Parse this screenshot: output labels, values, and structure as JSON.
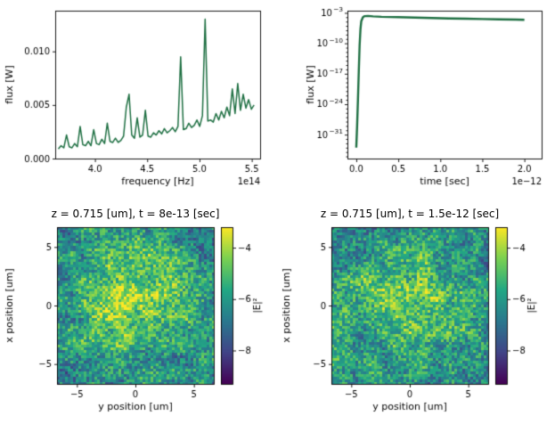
{
  "figure": {
    "background": "#ffffff"
  },
  "chart_data": [
    {
      "type": "line",
      "title": "",
      "xlabel": "frequency [Hz]",
      "x_offset_label": "1e14",
      "ylabel": "flux [W]",
      "xlim": [
        3.62,
        5.58
      ],
      "ylim": [
        0,
        0.0138
      ],
      "xticks": [
        4.0,
        4.5,
        5.0,
        5.5
      ],
      "xtick_labels": [
        "4.0",
        "4.5",
        "5.0",
        "5.5"
      ],
      "yticks": [
        0.0,
        0.005,
        0.01
      ],
      "ytick_labels": [
        "0.000",
        "0.005",
        "0.010"
      ],
      "line_color": "#1e6f42",
      "x_start": 3.65,
      "x_step": 0.026,
      "y": [
        0.0009,
        0.0012,
        0.001,
        0.0022,
        0.0011,
        0.001,
        0.0014,
        0.0011,
        0.003,
        0.0013,
        0.0012,
        0.0016,
        0.0012,
        0.0027,
        0.0014,
        0.0013,
        0.0018,
        0.0014,
        0.0033,
        0.0016,
        0.0015,
        0.0019,
        0.0015,
        0.0017,
        0.0021,
        0.0048,
        0.006,
        0.0022,
        0.0019,
        0.0038,
        0.002,
        0.0022,
        0.0045,
        0.0021,
        0.002,
        0.0024,
        0.0022,
        0.0026,
        0.0023,
        0.0028,
        0.0024,
        0.0026,
        0.0029,
        0.0025,
        0.003,
        0.0095,
        0.0027,
        0.0028,
        0.0033,
        0.0029,
        0.0031,
        0.0036,
        0.003,
        0.004,
        0.013,
        0.0035,
        0.0036,
        0.0034,
        0.0042,
        0.0036,
        0.0044,
        0.0038,
        0.0048,
        0.004,
        0.0065,
        0.0042,
        0.007,
        0.0045,
        0.006,
        0.0047,
        0.0055,
        0.0046,
        0.005
      ]
    },
    {
      "type": "line",
      "yscale": "log",
      "title": "",
      "xlabel": "time [sec]",
      "x_offset_label": "1e−12",
      "ylabel": "flux [W]",
      "xlim": [
        -0.105,
        2.205
      ],
      "ylog_lim": [
        -36.5,
        -2.5
      ],
      "xticks": [
        0.0,
        0.5,
        1.0,
        1.5,
        2.0
      ],
      "xtick_labels": [
        "0.0",
        "0.5",
        "1.0",
        "1.5",
        "2.0"
      ],
      "ytick_exponents": [
        -3,
        -10,
        -17,
        -24,
        -31
      ],
      "ytick_exp_labels": [
        "−3",
        "−10",
        "−17",
        "−24",
        "−31"
      ],
      "line_color": "#1e6f42",
      "x": [
        0.0,
        0.01,
        0.02,
        0.03,
        0.04,
        0.05,
        0.06,
        0.08,
        0.1,
        0.14,
        0.2,
        0.3,
        0.4,
        0.5,
        0.7,
        0.9,
        1.1,
        1.3,
        1.5,
        1.7,
        1.9,
        2.0
      ],
      "log10y": [
        -34,
        -29,
        -23,
        -16.5,
        -10.5,
        -6.8,
        -4.9,
        -4.0,
        -3.75,
        -3.7,
        -3.8,
        -3.9,
        -3.95,
        -4.0,
        -4.1,
        -4.2,
        -4.28,
        -4.35,
        -4.42,
        -4.5,
        -4.55,
        -4.6
      ]
    },
    {
      "type": "heatmap",
      "title": "z = 0.715 [um], t = 8e-13 [sec]",
      "xlabel": "y position [um]",
      "ylabel": "x position [um]",
      "xlim": [
        -6.7,
        6.7
      ],
      "ylim": [
        -6.7,
        6.7
      ],
      "xticks": [
        -5,
        0,
        5
      ],
      "xtick_labels": [
        "−5",
        "0",
        "5"
      ],
      "yticks": [
        5,
        0,
        -5
      ],
      "ytick_labels": [
        "5",
        "0",
        "−5"
      ],
      "colorbar_label": "|E|²",
      "colorbar_ticks": [
        -4,
        -6,
        -8
      ],
      "colorbar_tick_labels": [
        "−4",
        "−6",
        "−8"
      ],
      "vmin": -9.3,
      "vmax": -3.2,
      "colormap": "viridis",
      "colormap_stops": [
        "#440154",
        "#414487",
        "#2a788e",
        "#22a884",
        "#7ad151",
        "#fde725"
      ],
      "speckle": {
        "seed": 7,
        "base": -6.6,
        "low_amp": 0.9,
        "noise_amp": 1.3,
        "center_boost": 2.1,
        "center_x": 0.46,
        "center_y": 0.45,
        "sigma": 0.3
      }
    },
    {
      "type": "heatmap",
      "title": "z = 0.715 [um], t = 1.5e-12 [sec]",
      "xlabel": "y position [um]",
      "ylabel": "x position [um]",
      "xlim": [
        -6.7,
        6.7
      ],
      "ylim": [
        -6.7,
        6.7
      ],
      "xticks": [
        -5,
        0,
        5
      ],
      "xtick_labels": [
        "−5",
        "0",
        "5"
      ],
      "yticks": [
        5,
        0,
        -5
      ],
      "ytick_labels": [
        "5",
        "0",
        "−5"
      ],
      "colorbar_label": "|E|²",
      "colorbar_ticks": [
        -4,
        -6,
        -8
      ],
      "colorbar_tick_labels": [
        "−4",
        "−6",
        "−8"
      ],
      "vmin": -9.3,
      "vmax": -3.2,
      "colormap": "viridis",
      "colormap_stops": [
        "#440154",
        "#414487",
        "#2a788e",
        "#22a884",
        "#7ad151",
        "#fde725"
      ],
      "speckle": {
        "seed": 13,
        "base": -6.6,
        "low_amp": 0.9,
        "noise_amp": 1.3,
        "center_boost": 2.05,
        "center_x": 0.47,
        "center_y": 0.46,
        "sigma": 0.3
      }
    }
  ]
}
